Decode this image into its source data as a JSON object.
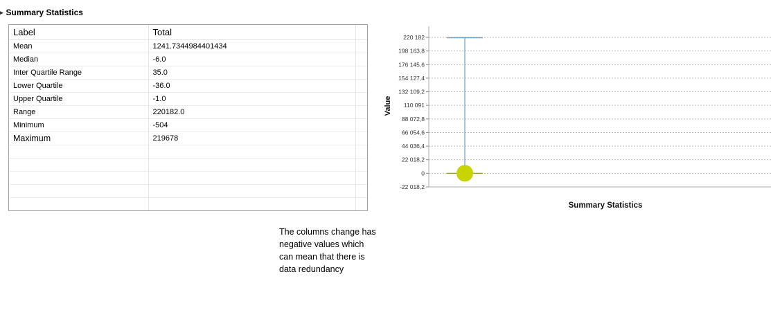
{
  "section": {
    "title": "Summary Statistics",
    "chevron": "chevron-right-icon"
  },
  "table": {
    "headers": [
      "Label",
      "Total"
    ],
    "rows": [
      [
        "Mean",
        "1241.7344984401434"
      ],
      [
        "Median",
        "-6.0"
      ],
      [
        "Inter Quartile Range",
        "35.0"
      ],
      [
        "Lower Quartile",
        "-36.0"
      ],
      [
        "Upper Quartile",
        "-1.0"
      ],
      [
        "Range",
        "220182.0"
      ],
      [
        "Minimum",
        "-504"
      ],
      [
        "Maximum",
        "219678"
      ]
    ],
    "empty_rows": 5
  },
  "annotation": "The columns change has negative values which can mean that there is data redundancy",
  "chart_data": {
    "type": "box",
    "title": "",
    "xlabel": "Summary Statistics",
    "ylabel": "Value",
    "ylim": [
      -22018.2,
      220182
    ],
    "yticks": [
      {
        "value": 220182,
        "label": "220 182"
      },
      {
        "value": 198163.8,
        "label": "198 163,8"
      },
      {
        "value": 176145.6,
        "label": "176 145,6"
      },
      {
        "value": 154127.4,
        "label": "154 127,4"
      },
      {
        "value": 132109.2,
        "label": "132 109,2"
      },
      {
        "value": 110091,
        "label": "110 091"
      },
      {
        "value": 88072.8,
        "label": "88 072,8"
      },
      {
        "value": 66054.6,
        "label": "66 054,6"
      },
      {
        "value": 44036.4,
        "label": "44 036,4"
      },
      {
        "value": 22018.2,
        "label": "22 018,2"
      },
      {
        "value": 0,
        "label": "0"
      },
      {
        "value": -22018.2,
        "label": "-22 018,2"
      }
    ],
    "box": {
      "min": -504,
      "q1": -36,
      "median": -6,
      "q3": -1,
      "max": 219678,
      "mean": 1241.7344984401434
    },
    "grid": true,
    "colors": {
      "whisker": "#6a9ec7",
      "median_line": "#8a9a2a",
      "marker": "#c8d400",
      "grid": "#b8b8b8"
    }
  }
}
